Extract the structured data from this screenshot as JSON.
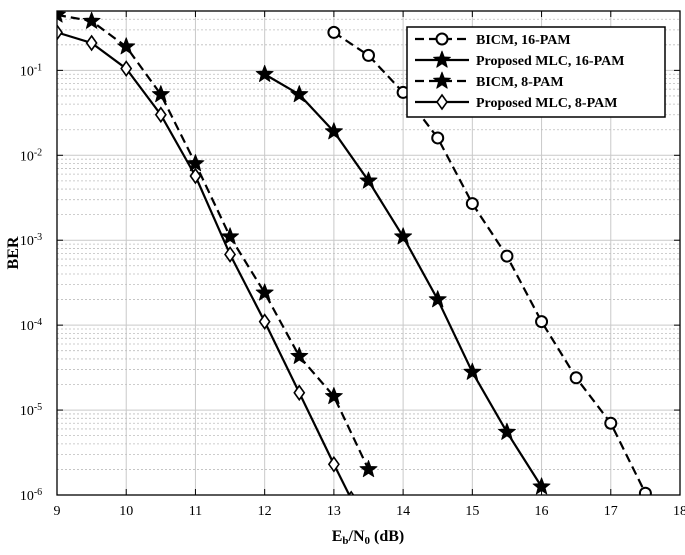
{
  "chart_data": {
    "type": "line",
    "xlabel": {
      "main": "E",
      "sub1": "b",
      "slash": "/N",
      "sub2": "0",
      "unit": " (dB)"
    },
    "ylabel": "BER",
    "xlim": [
      9,
      18
    ],
    "ylim": [
      1e-06,
      0.5
    ],
    "yscale": "log",
    "grid": true,
    "legend_position": "top-right",
    "x_ticks": [
      {
        "value": 9,
        "label": "9"
      },
      {
        "value": 10,
        "label": "10"
      },
      {
        "value": 11,
        "label": "11"
      },
      {
        "value": 12,
        "label": "12"
      },
      {
        "value": 13,
        "label": "13"
      },
      {
        "value": 14,
        "label": "14"
      },
      {
        "value": 15,
        "label": "15"
      },
      {
        "value": 16,
        "label": "16"
      },
      {
        "value": 17,
        "label": "17"
      },
      {
        "value": 18,
        "label": "18"
      }
    ],
    "y_ticks": [
      {
        "value": 1e-06,
        "base": "10",
        "exp": "-6"
      },
      {
        "value": 1e-05,
        "base": "10",
        "exp": "-5"
      },
      {
        "value": 0.0001,
        "base": "10",
        "exp": "-4"
      },
      {
        "value": 0.001,
        "base": "10",
        "exp": "-3"
      },
      {
        "value": 0.01,
        "base": "10",
        "exp": "-2"
      },
      {
        "value": 0.1,
        "base": "10",
        "exp": "-1"
      }
    ],
    "series": [
      {
        "name": "BICM, 16-PAM",
        "line": "dashed",
        "marker": "circle",
        "color": "#000000",
        "x": [
          13,
          13.5,
          14,
          14.5,
          15,
          15.5,
          16,
          16.5,
          17,
          17.5
        ],
        "y": [
          0.28,
          0.15,
          0.055,
          0.016,
          0.0027,
          0.00065,
          0.00011,
          2.4e-05,
          7e-06,
          1.05e-06
        ]
      },
      {
        "name": "Proposed MLC, 16-PAM",
        "line": "solid",
        "marker": "star",
        "color": "#000000",
        "x": [
          12,
          12.5,
          13,
          13.5,
          14,
          14.5,
          15,
          15.5,
          16
        ],
        "y": [
          0.09,
          0.052,
          0.019,
          0.005,
          0.0011,
          0.0002,
          2.8e-05,
          5.5e-06,
          1.25e-06
        ]
      },
      {
        "name": "BICM, 8-PAM",
        "line": "dashed",
        "marker": "star",
        "color": "#000000",
        "x": [
          9,
          9.5,
          10,
          10.5,
          11,
          11.5,
          12,
          12.5,
          13,
          13.5
        ],
        "y": [
          0.45,
          0.38,
          0.19,
          0.052,
          0.008,
          0.0011,
          0.00024,
          4.3e-05,
          1.45e-05,
          2e-06
        ]
      },
      {
        "name": "Proposed MLC, 8-PAM",
        "line": "solid",
        "marker": "diamond",
        "color": "#000000",
        "x": [
          9,
          9.5,
          10,
          10.5,
          11,
          11.5,
          12,
          12.5,
          13,
          13.25
        ],
        "y": [
          0.28,
          0.21,
          0.105,
          0.03,
          0.0057,
          0.00068,
          0.00011,
          1.6e-05,
          2.3e-06,
          9e-07
        ]
      }
    ]
  }
}
